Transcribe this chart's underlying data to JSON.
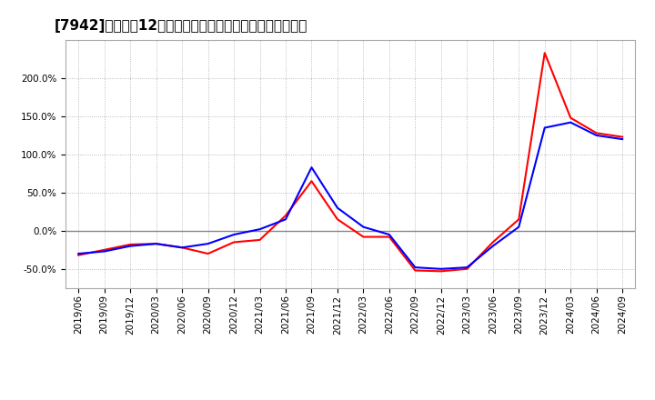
{
  "title": "[7942]　利益だ12か月移動合計の対前年同期増減率の推移",
  "x_labels": [
    "2019/06",
    "2019/09",
    "2019/12",
    "2020/03",
    "2020/06",
    "2020/09",
    "2020/12",
    "2021/03",
    "2021/06",
    "2021/09",
    "2021/12",
    "2022/03",
    "2022/06",
    "2022/09",
    "2022/12",
    "2023/03",
    "2023/06",
    "2023/09",
    "2023/12",
    "2024/03",
    "2024/06",
    "2024/09"
  ],
  "blue_values": [
    -30,
    -27,
    -20,
    -17,
    -22,
    -17,
    -5,
    2,
    15,
    83,
    30,
    5,
    -5,
    -48,
    -50,
    -48,
    -20,
    5,
    135,
    142,
    125,
    120
  ],
  "red_values": [
    -32,
    -25,
    -18,
    -17,
    -22,
    -30,
    -15,
    -12,
    20,
    65,
    15,
    -8,
    -8,
    -52,
    -53,
    -50,
    -15,
    15,
    233,
    148,
    128,
    123
  ],
  "blue_color": "#0000ff",
  "red_color": "#ff0000",
  "ylim": [
    -75,
    250
  ],
  "yticks": [
    -50,
    0,
    50,
    100,
    150,
    200
  ],
  "background_color": "#ffffff",
  "grid_color": "#aaaaaa",
  "zero_line_color": "#888888",
  "title_fontsize": 11,
  "tick_fontsize": 7.5,
  "legend_fontsize": 10
}
